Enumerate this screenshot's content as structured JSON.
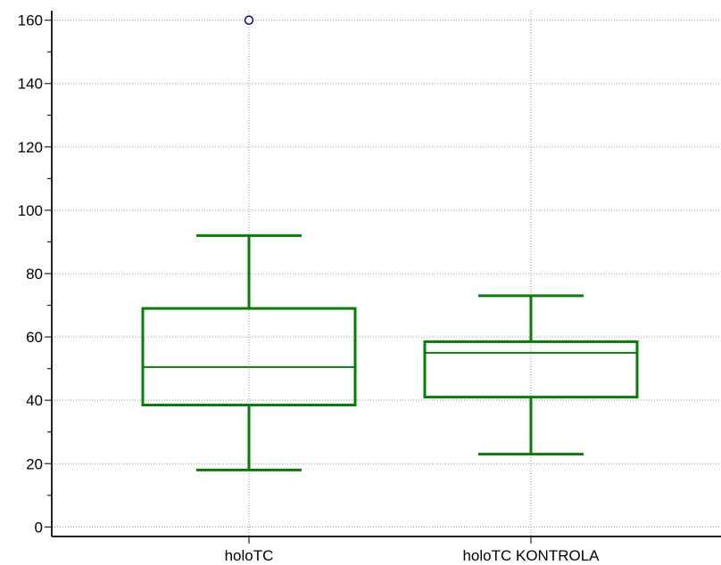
{
  "chart_data": {
    "type": "boxplot",
    "title": "",
    "xlabel": "",
    "ylabel": "",
    "ylim": [
      -3,
      163
    ],
    "y_major_ticks": [
      0,
      20,
      40,
      60,
      80,
      100,
      120,
      140,
      160
    ],
    "y_minor_step": 10,
    "grid": true,
    "box_color": "#0a7a0a",
    "outlier_color": "#00008b",
    "categories": [
      {
        "label": "holoTC",
        "whisker_low": 18,
        "q1": 38.5,
        "median": 50.5,
        "q3": 69,
        "whisker_high": 92,
        "outliers": [
          160
        ]
      },
      {
        "label": "holoTC KONTROLA",
        "whisker_low": 23,
        "q1": 41,
        "median": 55,
        "q3": 58.5,
        "whisker_high": 73,
        "outliers": []
      }
    ]
  }
}
